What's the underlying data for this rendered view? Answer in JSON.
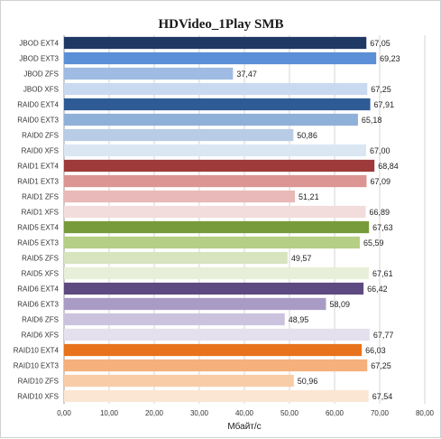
{
  "chart_data": {
    "type": "bar",
    "orientation": "horizontal",
    "title": "HDVideo_1Play SMB",
    "xlabel": "Мбайт/с",
    "ylabel": "",
    "xlim": [
      0,
      80
    ],
    "x_ticks": [
      "0,00",
      "10,00",
      "20,00",
      "30,00",
      "40,00",
      "50,00",
      "60,00",
      "70,00",
      "80,00"
    ],
    "grid": true,
    "legend": "none",
    "categories": [
      "JBOD EXT4",
      "JBOD EXT3",
      "JBOD ZFS",
      "JBOD XFS",
      "RAID0 EXT4",
      "RAID0 EXT3",
      "RAID0 ZFS",
      "RAID0 XFS",
      "RAID1 EXT4",
      "RAID1 EXT3",
      "RAID1 ZFS",
      "RAID1 XFS",
      "RAID5 EXT4",
      "RAID5 EXT3",
      "RAID5 ZFS",
      "RAID5 XFS",
      "RAID6 EXT4",
      "RAID6 EXT3",
      "RAID6 ZFS",
      "RAID6 XFS",
      "RAID10 EXT4",
      "RAID10 EXT3",
      "RAID10 ZFS",
      "RAID10 XFS"
    ],
    "values": [
      67.05,
      69.23,
      37.47,
      67.25,
      67.91,
      65.18,
      50.86,
      67.0,
      68.84,
      67.09,
      51.21,
      66.89,
      67.63,
      65.59,
      49.57,
      67.61,
      66.42,
      58.09,
      48.95,
      67.77,
      66.03,
      67.25,
      50.96,
      67.54
    ],
    "value_labels": [
      "67,05",
      "69,23",
      "37,47",
      "67,25",
      "67,91",
      "65,18",
      "50,86",
      "67,00",
      "68,84",
      "67,09",
      "51,21",
      "66,89",
      "67,63",
      "65,59",
      "49,57",
      "67,61",
      "66,42",
      "58,09",
      "48,95",
      "67,77",
      "66,03",
      "67,25",
      "50,96",
      "67,54"
    ],
    "colors": [
      "#1f3864",
      "#5b8fd6",
      "#9fbbe3",
      "#c8d9f0",
      "#2e5b95",
      "#8fb0d8",
      "#b9cce6",
      "#dbe6f3",
      "#9e3a3a",
      "#db9592",
      "#e8b9b8",
      "#f3dcdc",
      "#779a3a",
      "#b5cf86",
      "#d6e4bf",
      "#e7efd9",
      "#5d4a80",
      "#a99bc5",
      "#cbc3de",
      "#e4e0ee",
      "#e8731c",
      "#f5b07c",
      "#f8cca6",
      "#fbe6d4"
    ]
  }
}
